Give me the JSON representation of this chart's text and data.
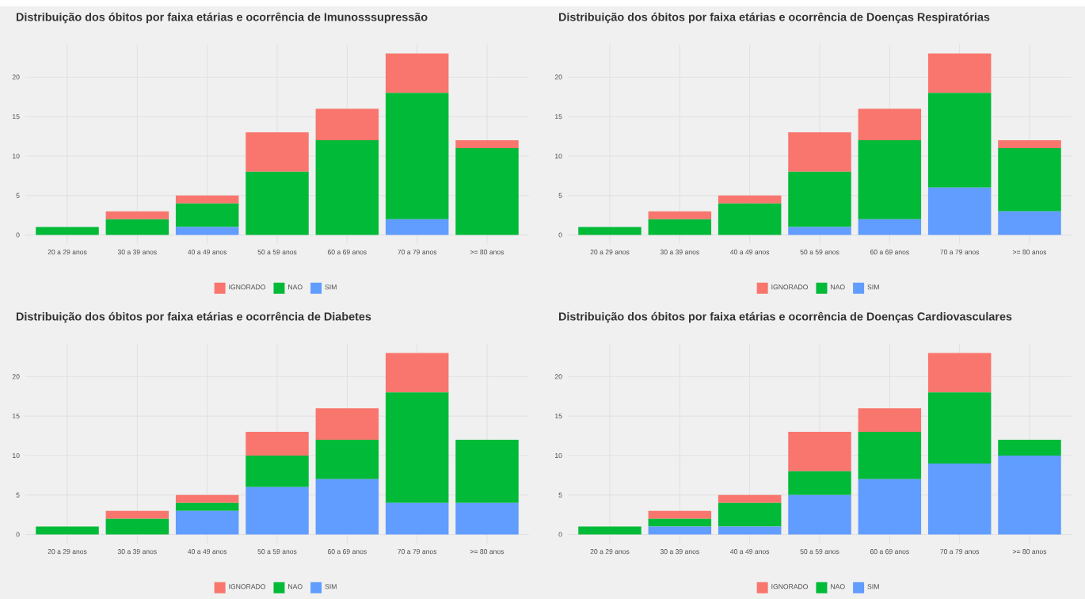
{
  "chart_data": [
    {
      "type": "bar",
      "stacked": true,
      "title": "Distribuição dos óbitos por faixa etárias e ocorrência de Imunosssupressão",
      "categories": [
        "20 a 29 anos",
        "30 a 39 anos",
        "40 a 49 anos",
        "50 a 59 anos",
        "60 a 69 anos",
        "70 a 79 anos",
        ">= 80 anos"
      ],
      "series": [
        {
          "name": "SIM",
          "color": "#619cff",
          "values": [
            0,
            0,
            1,
            0,
            0,
            2,
            0
          ]
        },
        {
          "name": "NAO",
          "color": "#00ba38",
          "values": [
            1,
            2,
            3,
            8,
            12,
            16,
            11
          ]
        },
        {
          "name": "IGNORADO",
          "color": "#f8766d",
          "values": [
            0,
            1,
            1,
            5,
            4,
            5,
            1
          ]
        }
      ],
      "ylim": [
        -1.15,
        24.15
      ],
      "yticks": [
        0,
        5,
        10,
        15,
        20
      ],
      "grid": true,
      "legend": "bottom"
    },
    {
      "type": "bar",
      "stacked": true,
      "title": "Distribuição dos óbitos por faixa etárias e ocorrência de Doenças Respiratórias",
      "categories": [
        "20 a 29 anos",
        "30 a 39 anos",
        "40 a 49 anos",
        "50 a 59 anos",
        "60 a 69 anos",
        "70 a 79 anos",
        ">= 80 anos"
      ],
      "series": [
        {
          "name": "SIM",
          "color": "#619cff",
          "values": [
            0,
            0,
            0,
            1,
            2,
            6,
            3
          ]
        },
        {
          "name": "NAO",
          "color": "#00ba38",
          "values": [
            1,
            2,
            4,
            7,
            10,
            12,
            8
          ]
        },
        {
          "name": "IGNORADO",
          "color": "#f8766d",
          "values": [
            0,
            1,
            1,
            5,
            4,
            5,
            1
          ]
        }
      ],
      "ylim": [
        -1.15,
        24.15
      ],
      "yticks": [
        0,
        5,
        10,
        15,
        20
      ],
      "grid": true,
      "legend": "bottom"
    },
    {
      "type": "bar",
      "stacked": true,
      "title": "Distribuição dos óbitos por faixa etárias e ocorrência de Diabetes",
      "categories": [
        "20 a 29 anos",
        "30 a 39 anos",
        "40 a 49 anos",
        "50 a 59 anos",
        "60 a 69 anos",
        "70 a 79 anos",
        ">= 80 anos"
      ],
      "series": [
        {
          "name": "SIM",
          "color": "#619cff",
          "values": [
            0,
            0,
            3,
            6,
            7,
            4,
            4
          ]
        },
        {
          "name": "NAO",
          "color": "#00ba38",
          "values": [
            1,
            2,
            1,
            4,
            5,
            14,
            8
          ]
        },
        {
          "name": "IGNORADO",
          "color": "#f8766d",
          "values": [
            0,
            1,
            1,
            3,
            4,
            5,
            0
          ]
        }
      ],
      "ylim": [
        -1.15,
        24.15
      ],
      "yticks": [
        0,
        5,
        10,
        15,
        20
      ],
      "grid": true,
      "legend": "bottom"
    },
    {
      "type": "bar",
      "stacked": true,
      "title": "Distribuição dos óbitos por faixa etárias e ocorrência de Doenças Cardiovasculares",
      "categories": [
        "20 a 29 anos",
        "30 a 39 anos",
        "40 a 49 anos",
        "50 a 59 anos",
        "60 a 69 anos",
        "70 a 79 anos",
        ">= 80 anos"
      ],
      "series": [
        {
          "name": "SIM",
          "color": "#619cff",
          "values": [
            0,
            1,
            1,
            5,
            7,
            9,
            10
          ]
        },
        {
          "name": "NAO",
          "color": "#00ba38",
          "values": [
            1,
            1,
            3,
            3,
            6,
            9,
            2
          ]
        },
        {
          "name": "IGNORADO",
          "color": "#f8766d",
          "values": [
            0,
            1,
            1,
            5,
            3,
            5,
            0
          ]
        }
      ],
      "ylim": [
        -1.15,
        24.15
      ],
      "yticks": [
        0,
        5,
        10,
        15,
        20
      ],
      "grid": true,
      "legend": "bottom"
    }
  ]
}
